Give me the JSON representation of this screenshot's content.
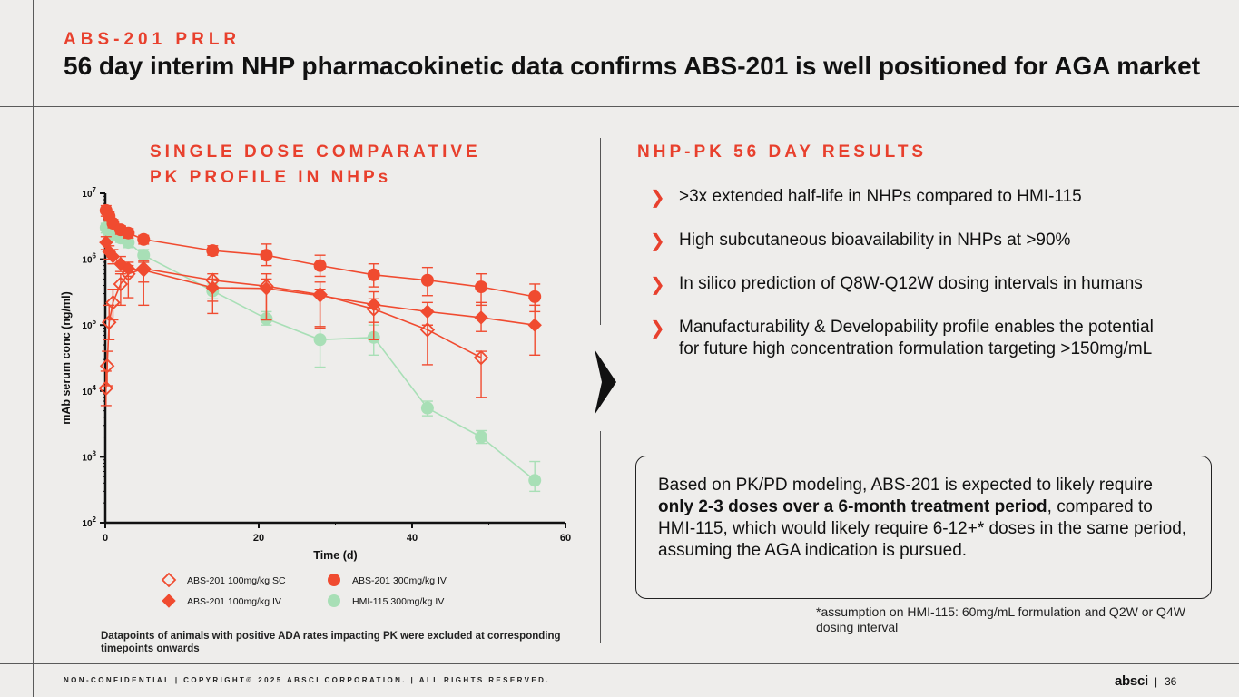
{
  "header": {
    "eyebrow": "ABS-201 PRLR",
    "title": "56 day interim NHP pharmacokinetic data confirms ABS-201 is well positioned for AGA market"
  },
  "chart_panel": {
    "title_line1": "SINGLE DOSE COMPARATIVE",
    "title_line2": "PK PROFILE IN NHPs",
    "footnote": "Datapoints of animals with positive ADA rates impacting PK were excluded at corresponding timepoints onwards"
  },
  "chart_data": {
    "type": "line",
    "title": "SINGLE DOSE COMPARATIVE PK PROFILE IN NHPs",
    "xlabel": "Time (d)",
    "ylabel": "mAb serum conc (ng/ml)",
    "xlim": [
      0,
      60
    ],
    "ylim": [
      100,
      10000000
    ],
    "yscale": "log",
    "x_ticks": [
      "0",
      "20",
      "40",
      "60"
    ],
    "y_ticks": [
      {
        "base": "10",
        "exp": "2"
      },
      {
        "base": "10",
        "exp": "3"
      },
      {
        "base": "10",
        "exp": "4"
      },
      {
        "base": "10",
        "exp": "5"
      },
      {
        "base": "10",
        "exp": "6"
      },
      {
        "base": "10",
        "exp": "7"
      }
    ],
    "series": [
      {
        "name": "ABS-201 100mg/kg SC",
        "color": "#f04b30",
        "marker": "diamond-open",
        "x": [
          0.1,
          0.25,
          0.5,
          1,
          2,
          3,
          5,
          14,
          21,
          28,
          35,
          42,
          49
        ],
        "y": [
          11000,
          24000,
          110000,
          220000,
          420000,
          600000,
          720000,
          480000,
          390000,
          290000,
          175000,
          85000,
          32000
        ],
        "err_lo": [
          6000,
          12000,
          60000,
          120000,
          200000,
          260000,
          200000,
          150000,
          120000,
          90000,
          60000,
          25000,
          8000
        ],
        "err_hi": [
          20000,
          40000,
          200000,
          350000,
          600000,
          800000,
          900000,
          600000,
          500000,
          350000,
          250000,
          100000,
          40000
        ]
      },
      {
        "name": "ABS-201 100mg/kg IV",
        "color": "#f04b30",
        "marker": "diamond-filled",
        "x": [
          0.1,
          0.5,
          1,
          2,
          3,
          5,
          14,
          21,
          28,
          35,
          42,
          49,
          56
        ],
        "y": [
          1800000,
          1300000,
          1100000,
          850000,
          720000,
          680000,
          370000,
          360000,
          280000,
          205000,
          160000,
          130000,
          100000
        ],
        "err_lo": [
          1400000,
          1000000,
          850000,
          650000,
          550000,
          450000,
          230000,
          120000,
          95000,
          110000,
          100000,
          80000,
          35000
        ],
        "err_hi": [
          2200000,
          1600000,
          1400000,
          1100000,
          900000,
          950000,
          500000,
          600000,
          450000,
          320000,
          220000,
          220000,
          200000
        ]
      },
      {
        "name": "ABS-201 300mg/kg IV",
        "color": "#f04b30",
        "marker": "circle-filled",
        "x": [
          0.1,
          0.5,
          1,
          2,
          3,
          5,
          14,
          21,
          28,
          35,
          42,
          49,
          56
        ],
        "y": [
          5500000,
          4500000,
          3500000,
          2800000,
          2500000,
          2000000,
          1350000,
          1150000,
          800000,
          580000,
          480000,
          380000,
          270000
        ],
        "err_lo": [
          4500000,
          3800000,
          3000000,
          2400000,
          2100000,
          1700000,
          1150000,
          800000,
          550000,
          380000,
          280000,
          200000,
          160000
        ],
        "err_hi": [
          6500000,
          5200000,
          4000000,
          3200000,
          2900000,
          2300000,
          1600000,
          1700000,
          1150000,
          850000,
          750000,
          600000,
          420000
        ]
      },
      {
        "name": "HMI-115 300mg/kg IV",
        "color": "#a8dfb6",
        "marker": "circle-filled",
        "x": [
          0.1,
          0.5,
          1,
          2,
          3,
          5,
          14,
          21,
          28,
          35,
          42,
          49,
          56
        ],
        "y": [
          3000000,
          2600000,
          2400000,
          2100000,
          1800000,
          1150000,
          330000,
          125000,
          60000,
          65000,
          5500,
          2000,
          440
        ],
        "err_lo": [
          2500000,
          2200000,
          2000000,
          1800000,
          1500000,
          900000,
          250000,
          100000,
          23000,
          35000,
          4200,
          1600,
          300
        ],
        "err_hi": [
          3500000,
          3000000,
          2800000,
          2400000,
          2100000,
          1400000,
          420000,
          160000,
          95000,
          100000,
          7000,
          2500,
          850
        ]
      }
    ],
    "legend": [
      {
        "label": "ABS-201 100mg/kg SC",
        "marker": "diamond-open"
      },
      {
        "label": "ABS-201 300mg/kg IV",
        "marker": "circle-filled"
      },
      {
        "label": "ABS-201 100mg/kg IV",
        "marker": "diamond-filled"
      },
      {
        "label": "HMI-115 300mg/kg IV",
        "marker": "circle-filled-green"
      }
    ],
    "legend_position": "bottom"
  },
  "results": {
    "title": "NHP-PK 56 DAY RESULTS",
    "items": [
      ">3x extended half-life in NHPs compared to HMI-115",
      "High subcutaneous bioavailability in NHPs at >90%",
      "In silico prediction of Q8W-Q12W dosing intervals in humans",
      "Manufacturability & Developability profile enables the potential for future high concentration formulation targeting >150mg/mL"
    ],
    "bullet_icon": "chevron-right-icon"
  },
  "callout": {
    "part1": "Based on PK/PD modeling, ABS-201 is expected to likely require ",
    "bold": "only 2-3 doses over a 6-month treatment period",
    "part2": ", compared to HMI-115, which would likely require 6-12+* doses in the same period, assuming the AGA indication is pursued."
  },
  "assumption": "*assumption on HMI-115: 60mg/mL formulation and Q2W or Q4W dosing interval",
  "footer": {
    "confidential": "NON-CONFIDENTIAL",
    "copyright": "COPYRIGHT© 2025 ABSCI CORPORATION.",
    "rights": "ALL RIGHTS RESERVED.",
    "logo": "absci",
    "page": "36"
  },
  "colors": {
    "accent": "#e8402d",
    "series_red": "#f04b30",
    "series_green": "#a8dfb6",
    "background": "#eeedeb"
  }
}
